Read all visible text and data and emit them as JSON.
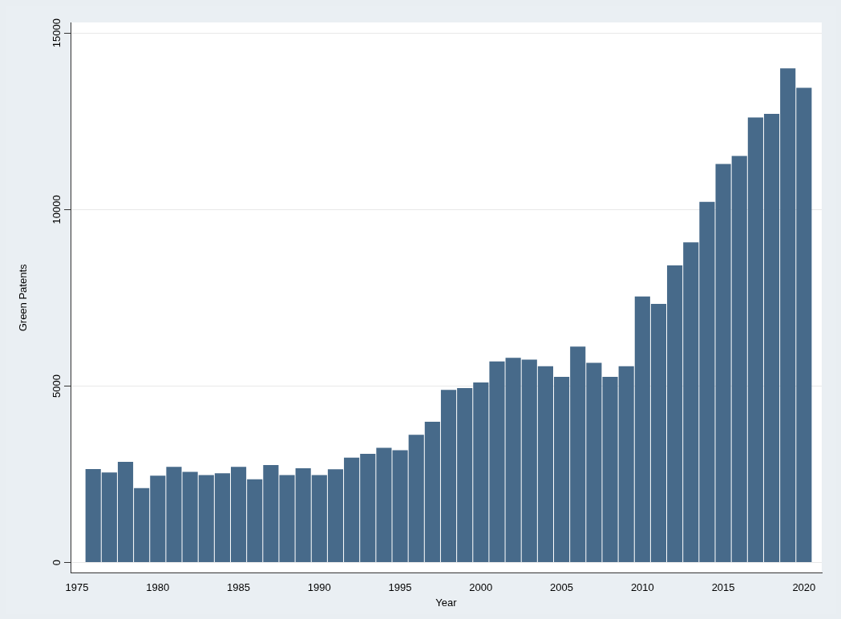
{
  "chart_data": {
    "type": "bar",
    "xlabel": "Year",
    "ylabel": "Green Patents",
    "x": [
      1976,
      1977,
      1978,
      1979,
      1980,
      1981,
      1982,
      1983,
      1984,
      1985,
      1986,
      1987,
      1988,
      1989,
      1990,
      1991,
      1992,
      1993,
      1994,
      1995,
      1996,
      1997,
      1998,
      1999,
      2000,
      2001,
      2002,
      2003,
      2004,
      2005,
      2006,
      2007,
      2008,
      2009,
      2010,
      2011,
      2012,
      2013,
      2014,
      2015,
      2016,
      2017,
      2018,
      2019,
      2020
    ],
    "values": [
      2650,
      2550,
      2850,
      2110,
      2460,
      2710,
      2570,
      2480,
      2530,
      2710,
      2360,
      2760,
      2480,
      2670,
      2480,
      2640,
      2970,
      3080,
      3250,
      3180,
      3620,
      3990,
      4890,
      4940,
      5100,
      5700,
      5800,
      5750,
      5560,
      5260,
      6120,
      5660,
      5260,
      5560,
      7540,
      7330,
      8420,
      9070,
      10220,
      11290,
      11520,
      12610,
      12710,
      14000,
      13450
    ],
    "color": "#476a8a",
    "xlim": [
      1974.6,
      2021.1
    ],
    "xticks": [
      1975,
      1980,
      1985,
      1990,
      1995,
      2000,
      2005,
      2010,
      2015,
      2020
    ],
    "ylim": [
      -300,
      15300
    ],
    "yticks": [
      0,
      5000,
      10000,
      15000
    ],
    "grid": "y",
    "legend": false
  }
}
